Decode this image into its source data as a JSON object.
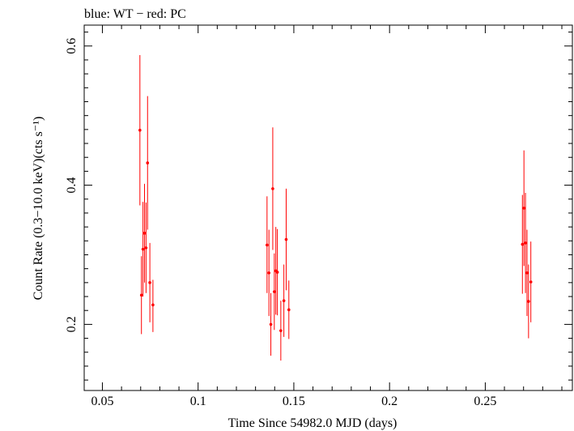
{
  "chart_data": {
    "type": "scatter",
    "title": "blue: WT − red: PC",
    "xlabel": "Time Since 54982.0 MJD (days)",
    "ylabel": "Count Rate (0.3−10.0 keV)(cts s⁻¹)",
    "xlim": [
      0.0405,
      0.2955
    ],
    "ylim": [
      0.105,
      0.63
    ],
    "xticks": [
      {
        "value": 0.05,
        "label": "0.05"
      },
      {
        "value": 0.1,
        "label": "0.1"
      },
      {
        "value": 0.15,
        "label": "0.15"
      },
      {
        "value": 0.2,
        "label": "0.2"
      },
      {
        "value": 0.25,
        "label": "0.25"
      }
    ],
    "yticks": [
      {
        "value": 0.2,
        "label": "0.2"
      },
      {
        "value": 0.4,
        "label": "0.4"
      },
      {
        "value": 0.6,
        "label": "0.6"
      }
    ],
    "grid": false,
    "series": [
      {
        "color": "#ff0000",
        "points": [
          {
            "x": 0.0696,
            "y": 0.479,
            "ylo": 0.371,
            "yhi": 0.587
          },
          {
            "x": 0.0704,
            "y": 0.242,
            "ylo": 0.186,
            "yhi": 0.298
          },
          {
            "x": 0.0712,
            "y": 0.308,
            "ylo": 0.24,
            "yhi": 0.376
          },
          {
            "x": 0.072,
            "y": 0.331,
            "ylo": 0.26,
            "yhi": 0.402
          },
          {
            "x": 0.0728,
            "y": 0.31,
            "ylo": 0.245,
            "yhi": 0.375
          },
          {
            "x": 0.0736,
            "y": 0.432,
            "ylo": 0.336,
            "yhi": 0.528
          },
          {
            "x": 0.0748,
            "y": 0.26,
            "ylo": 0.203,
            "yhi": 0.317
          },
          {
            "x": 0.0764,
            "y": 0.228,
            "ylo": 0.189,
            "yhi": 0.264
          },
          {
            "x": 0.136,
            "y": 0.314,
            "ylo": 0.245,
            "yhi": 0.384
          },
          {
            "x": 0.137,
            "y": 0.274,
            "ylo": 0.212,
            "yhi": 0.336
          },
          {
            "x": 0.138,
            "y": 0.2,
            "ylo": 0.155,
            "yhi": 0.245
          },
          {
            "x": 0.139,
            "y": 0.395,
            "ylo": 0.307,
            "yhi": 0.483
          },
          {
            "x": 0.1398,
            "y": 0.247,
            "ylo": 0.192,
            "yhi": 0.302
          },
          {
            "x": 0.1406,
            "y": 0.277,
            "ylo": 0.214,
            "yhi": 0.34
          },
          {
            "x": 0.1414,
            "y": 0.275,
            "ylo": 0.213,
            "yhi": 0.337
          },
          {
            "x": 0.1432,
            "y": 0.191,
            "ylo": 0.148,
            "yhi": 0.234
          },
          {
            "x": 0.1448,
            "y": 0.234,
            "ylo": 0.182,
            "yhi": 0.286
          },
          {
            "x": 0.146,
            "y": 0.322,
            "ylo": 0.249,
            "yhi": 0.395
          },
          {
            "x": 0.1474,
            "y": 0.221,
            "ylo": 0.179,
            "yhi": 0.263
          },
          {
            "x": 0.2694,
            "y": 0.315,
            "ylo": 0.244,
            "yhi": 0.386
          },
          {
            "x": 0.2702,
            "y": 0.367,
            "ylo": 0.284,
            "yhi": 0.45
          },
          {
            "x": 0.271,
            "y": 0.317,
            "ylo": 0.245,
            "yhi": 0.389
          },
          {
            "x": 0.2718,
            "y": 0.274,
            "ylo": 0.212,
            "yhi": 0.336
          },
          {
            "x": 0.2726,
            "y": 0.233,
            "ylo": 0.18,
            "yhi": 0.286
          },
          {
            "x": 0.2738,
            "y": 0.261,
            "ylo": 0.203,
            "yhi": 0.319
          }
        ]
      }
    ]
  }
}
